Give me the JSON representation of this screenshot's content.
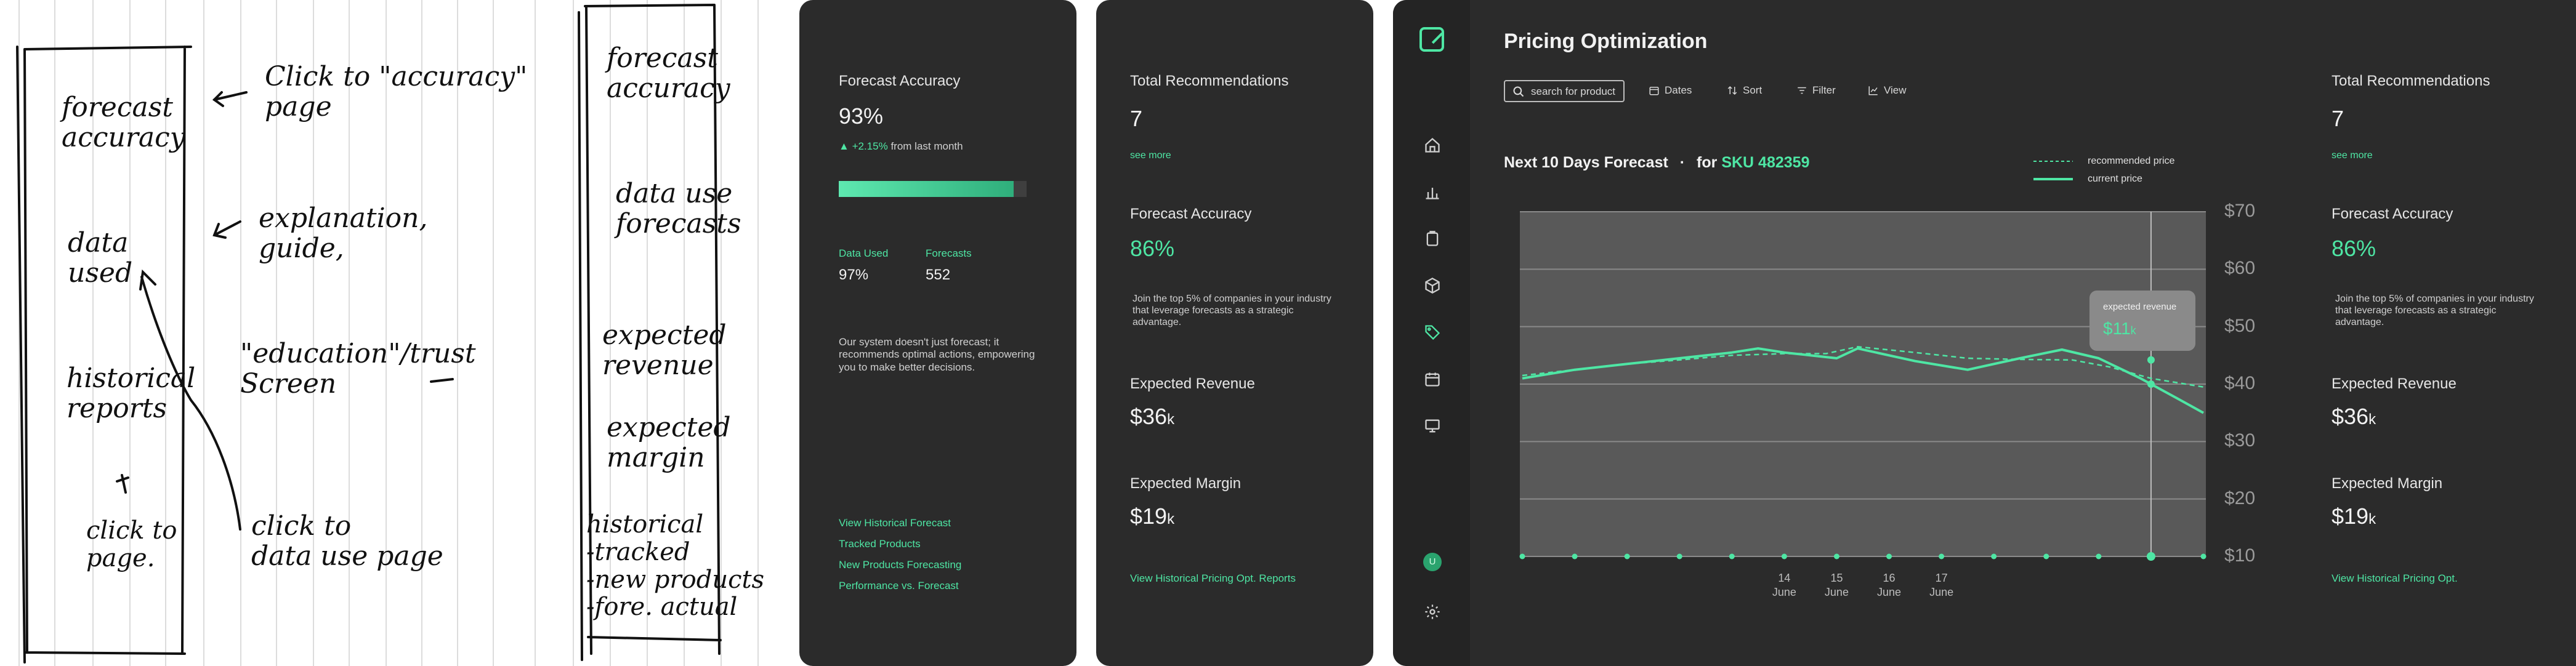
{
  "sketch": {
    "left_box": {
      "forecast_accuracy": "forecast\naccuracy",
      "data_used": "data\nused",
      "historical_reports": "historical\nreports",
      "click_to_page": "click to\npage."
    },
    "notes": {
      "click_accuracy": "Click to \"accuracy\"\npage",
      "explanation": "explanation,\nguide,",
      "education": "\"education\"/trust\nScreen",
      "click_data": "click to\ndata use page"
    },
    "right_box": {
      "forecast_accuracy": "forecast\naccuracy",
      "data_use": "data use\nforecasts",
      "expected_revenue": "expected\nrevenue",
      "expected_margin": "expected\nmargin",
      "historical": "historical\n-tracked\n-new products\n-fore. actual"
    }
  },
  "panel1": {
    "title": "Forecast Accuracy",
    "value": "93%",
    "change": "+2.15%",
    "change_suffix": "from last month",
    "progress": 0.93,
    "data_used_label": "Data Used",
    "data_used_value": "97%",
    "forecasts_label": "Forecasts",
    "forecasts_value": "552",
    "description": "Our system doesn't just forecast; it recommends optimal actions, empowering you to make better decisions.",
    "links": [
      "View Historical Forecast",
      "Tracked Products",
      "New Products Forecasting",
      "Performance vs. Forecast"
    ]
  },
  "panel2": {
    "total_label": "Total Recommendations",
    "total_value": "7",
    "see_more": "see more",
    "accuracy_label": "Forecast Accuracy",
    "accuracy_value": "86%",
    "accuracy_text": "Join the top 5% of companies in your industry that leverage forecasts as a strategic advantage.",
    "revenue_label": "Expected Revenue",
    "revenue_value": "$36",
    "revenue_unit": "k",
    "margin_label": "Expected Margin",
    "margin_value": "$19",
    "margin_unit": "k",
    "link": "View Historical Pricing Opt. Reports"
  },
  "dashboard": {
    "title": "Pricing Optimization",
    "search_placeholder": "search for product",
    "toolbar": {
      "dates": "Dates",
      "sort": "Sort",
      "filter": "Filter",
      "view": "View"
    },
    "forecast_title": "Next 10 Days Forecast",
    "separator": "·",
    "for_label": "for",
    "sku": "SKU 482359",
    "legend": {
      "recommended": "recommended price",
      "current": "current price"
    },
    "tooltip": {
      "title": "expected revenue",
      "value": "$11",
      "unit": "k"
    },
    "avatar_initial": "U",
    "nav_icons": [
      "home-icon",
      "bar-chart-icon",
      "clipboard-icon",
      "box-icon",
      "tag-icon",
      "calendar-icon",
      "monitor-icon",
      "settings-icon"
    ],
    "accent": "#4ee6a4",
    "right": {
      "total_label": "Total Recommendations",
      "total_value": "7",
      "see_more": "see more",
      "accuracy_label": "Forecast Accuracy",
      "accuracy_value": "86%",
      "accuracy_text": "Join the top 5% of companies in your industry that leverage forecasts as a strategic advantage.",
      "revenue_label": "Expected Revenue",
      "revenue_value": "$36",
      "revenue_unit": "k",
      "margin_label": "Expected Margin",
      "margin_value": "$19",
      "margin_unit": "k",
      "link": "View Historical Pricing Opt."
    }
  },
  "chart_data": {
    "type": "line",
    "title": "",
    "xlabel": "",
    "ylabel": "",
    "ylim": [
      10,
      70
    ],
    "yticks": [
      "$70",
      "$60",
      "$50",
      "$40",
      "$30",
      "$20",
      "$10"
    ],
    "x_tick_labels": [
      {
        "index": 5,
        "day": "14",
        "month": "June"
      },
      {
        "index": 6,
        "day": "15",
        "month": "June"
      },
      {
        "index": 7,
        "day": "16",
        "month": "June"
      },
      {
        "index": 8,
        "day": "17",
        "month": "June"
      }
    ],
    "x_count": 14,
    "grid": true,
    "legend_position": "top-right",
    "series": [
      {
        "name": "recommended price",
        "style": "dashed",
        "x": [
          0,
          1,
          2,
          3,
          4,
          5,
          5.8,
          6.4,
          7.5,
          8.5,
          9.5,
          10.5,
          11.2,
          12,
          13
        ],
        "values": [
          41.5,
          42.5,
          43.5,
          44.2,
          45,
          45.3,
          45.3,
          46.5,
          45.5,
          44.5,
          44.3,
          44.2,
          43,
          41,
          39.5
        ]
      },
      {
        "name": "current price",
        "style": "solid",
        "x": [
          0,
          1,
          2,
          3,
          4,
          4.5,
          5,
          6,
          6.4,
          7.5,
          8.5,
          9.5,
          10.3,
          11,
          11.8,
          12.5,
          13
        ],
        "values": [
          41,
          42.5,
          43.5,
          44.5,
          45.5,
          46.2,
          45.5,
          44.5,
          46.2,
          44,
          42.5,
          44.5,
          46,
          44.5,
          41,
          37.5,
          35
        ]
      }
    ],
    "highlight_index": 12
  }
}
